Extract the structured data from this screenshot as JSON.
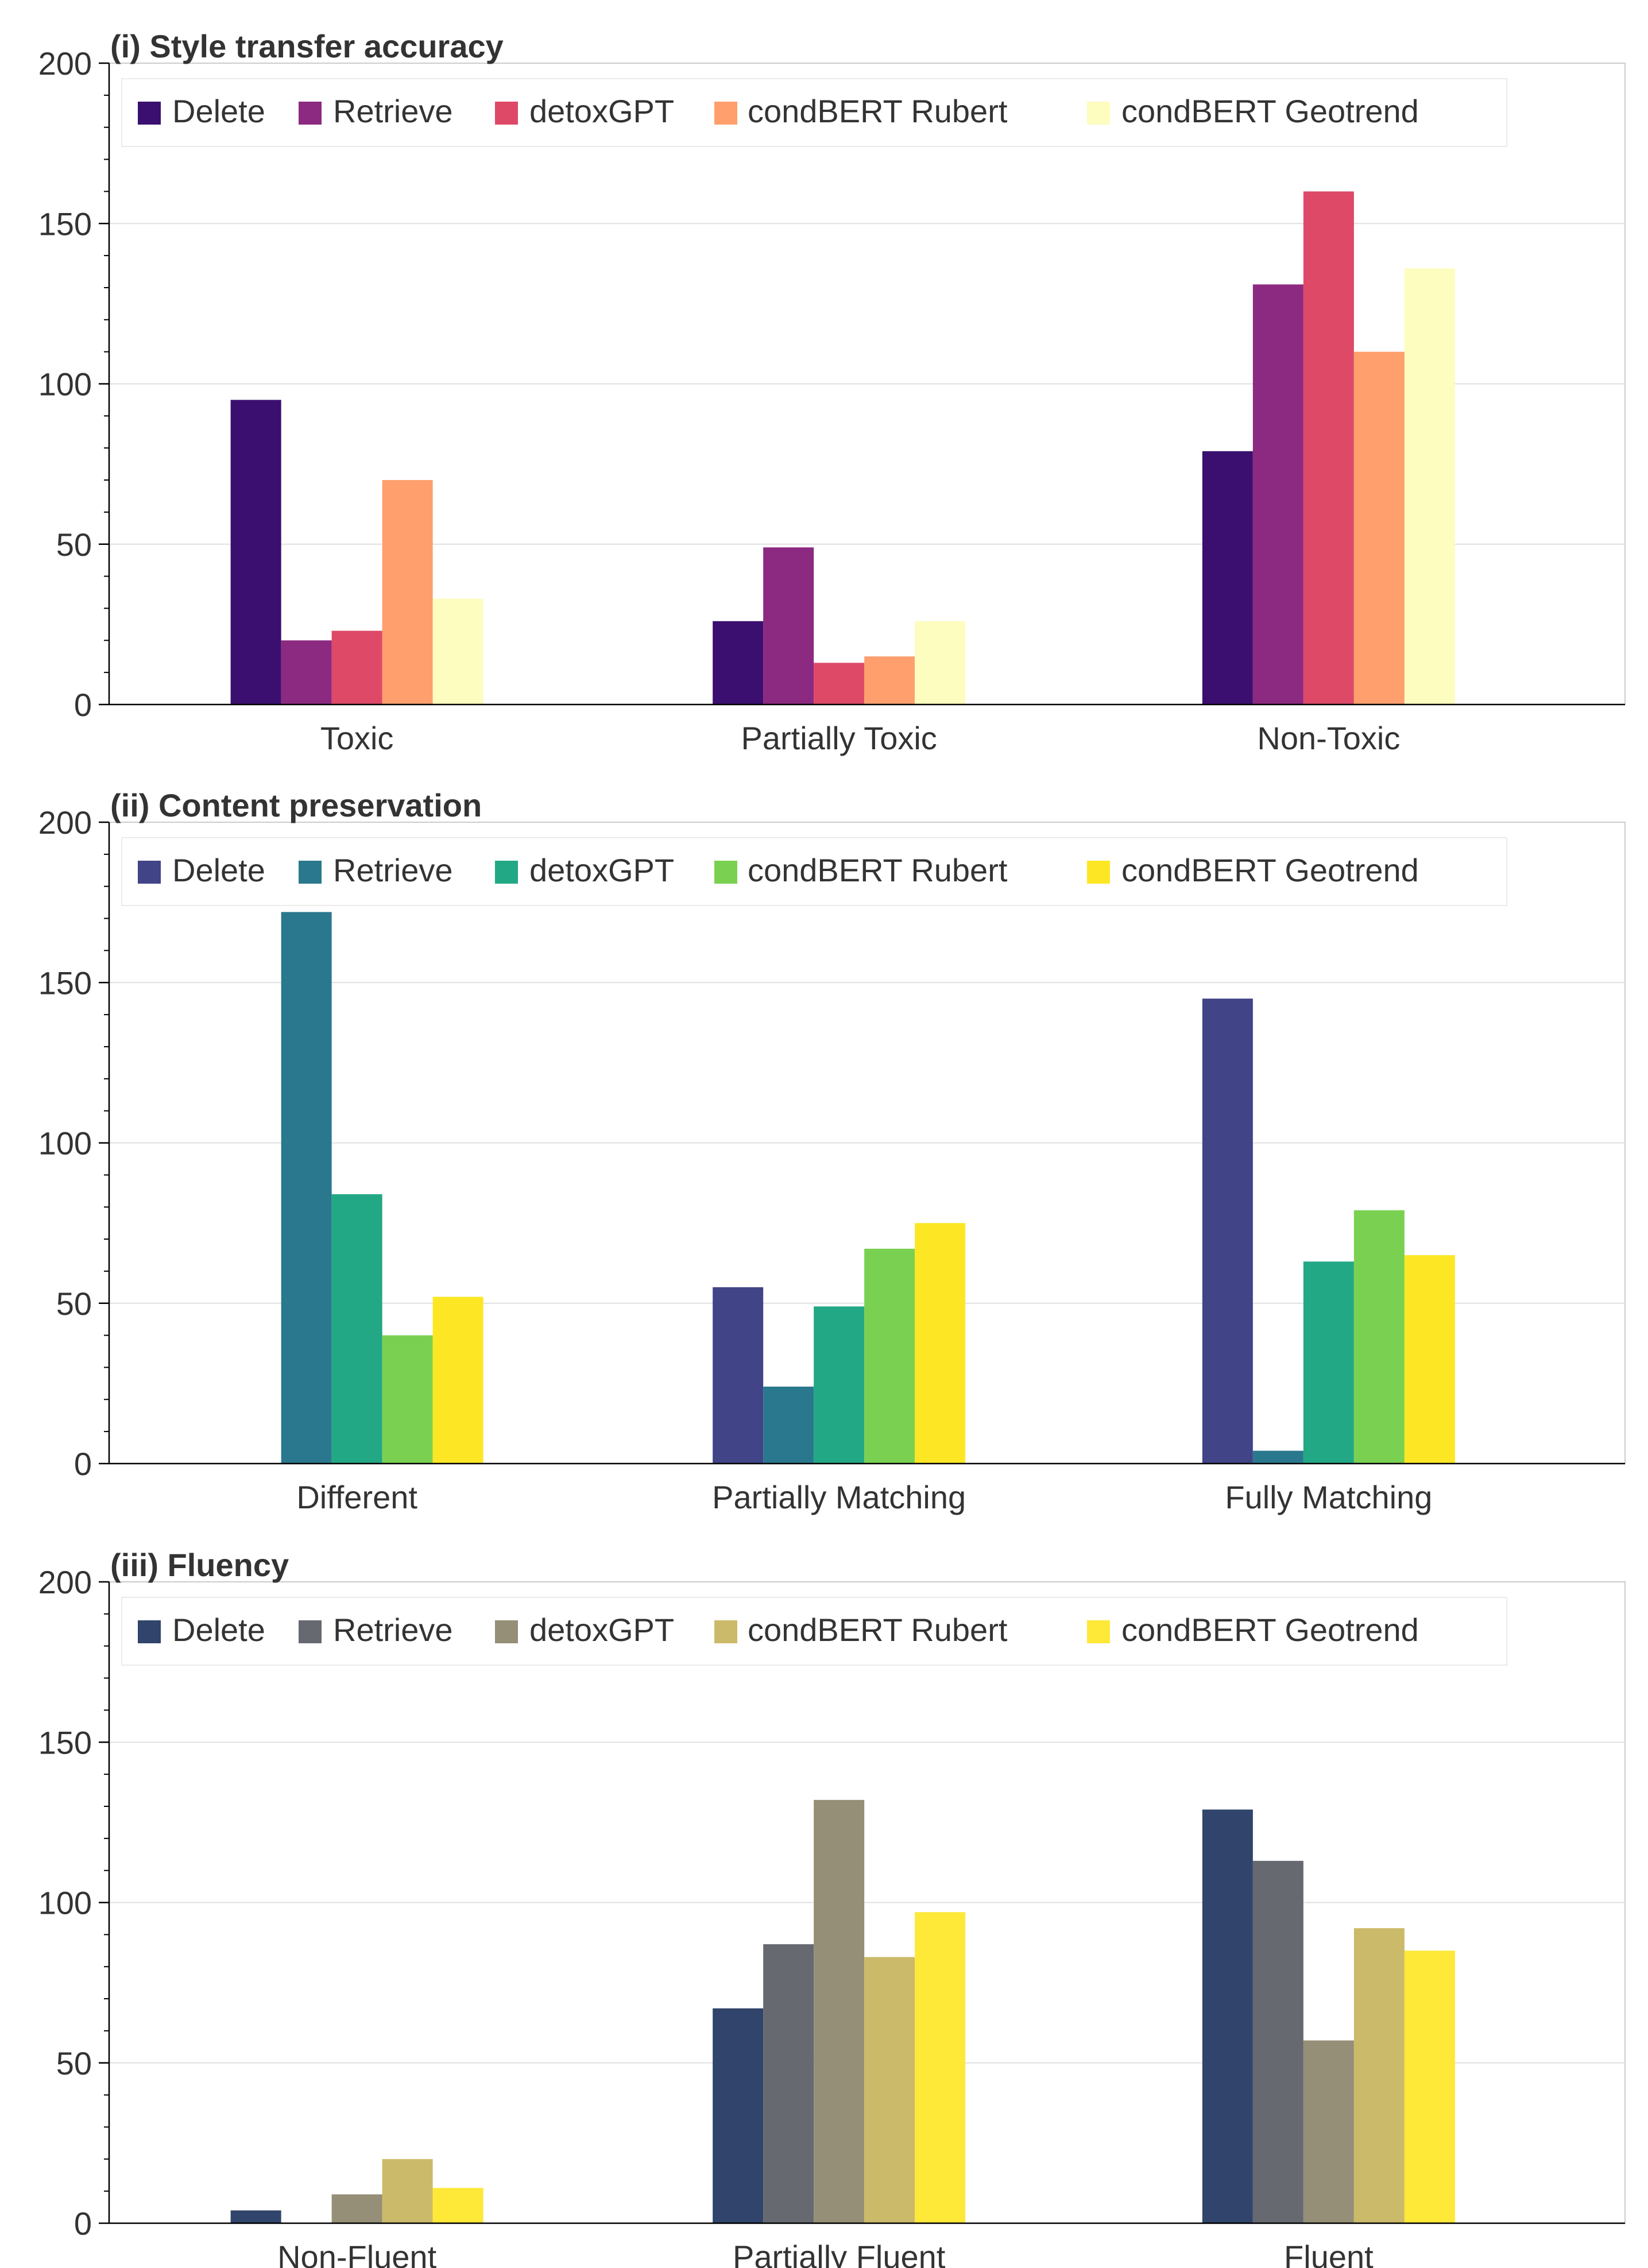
{
  "chart_data": [
    {
      "type": "bar",
      "title": "(i) Style transfer accuracy",
      "categories": [
        "Toxic",
        "Partially Toxic",
        "Non-Toxic"
      ],
      "ylim": [
        0,
        200
      ],
      "yticks": [
        0,
        50,
        100,
        150,
        200
      ],
      "series": [
        {
          "name": "Delete",
          "color": "#3b0f6f",
          "values": [
            95,
            26,
            79
          ]
        },
        {
          "name": "Retrieve",
          "color": "#8c2981",
          "values": [
            20,
            49,
            131
          ]
        },
        {
          "name": "detoxGPT",
          "color": "#de4968",
          "values": [
            23,
            13,
            160
          ]
        },
        {
          "name": "condBERT Rubert",
          "color": "#fe9f6d",
          "values": [
            70,
            15,
            110
          ]
        },
        {
          "name": "condBERT Geotrend",
          "color": "#fcfdbf",
          "values": [
            33,
            26,
            136
          ]
        }
      ]
    },
    {
      "type": "bar",
      "title": "(ii) Content preservation",
      "categories": [
        "Different",
        "Partially Matching",
        "Fully Matching"
      ],
      "ylim": [
        0,
        200
      ],
      "yticks": [
        0,
        50,
        100,
        150,
        200
      ],
      "series": [
        {
          "name": "Delete",
          "color": "#414487",
          "values": [
            0,
            55,
            145
          ]
        },
        {
          "name": "Retrieve",
          "color": "#2a788e",
          "values": [
            172,
            24,
            4
          ]
        },
        {
          "name": "detoxGPT",
          "color": "#22a884",
          "values": [
            84,
            49,
            63
          ]
        },
        {
          "name": "condBERT Rubert",
          "color": "#7ad151",
          "values": [
            40,
            67,
            79
          ]
        },
        {
          "name": "condBERT Geotrend",
          "color": "#fde725",
          "values": [
            52,
            75,
            65
          ]
        }
      ]
    },
    {
      "type": "bar",
      "title": "(iii) Fluency",
      "categories": [
        "Non-Fluent",
        "Partially Fluent",
        "Fluent"
      ],
      "ylim": [
        0,
        200
      ],
      "yticks": [
        0,
        50,
        100,
        150,
        200
      ],
      "series": [
        {
          "name": "Delete",
          "color": "#31446b",
          "values": [
            4,
            67,
            129
          ]
        },
        {
          "name": "Retrieve",
          "color": "#666970",
          "values": [
            0,
            87,
            113
          ]
        },
        {
          "name": "detoxGPT",
          "color": "#958f78",
          "values": [
            9,
            132,
            57
          ]
        },
        {
          "name": "condBERT Rubert",
          "color": "#cbba69",
          "values": [
            20,
            83,
            92
          ]
        },
        {
          "name": "condBERT Geotrend",
          "color": "#fee838",
          "values": [
            11,
            97,
            85
          ]
        }
      ]
    }
  ]
}
